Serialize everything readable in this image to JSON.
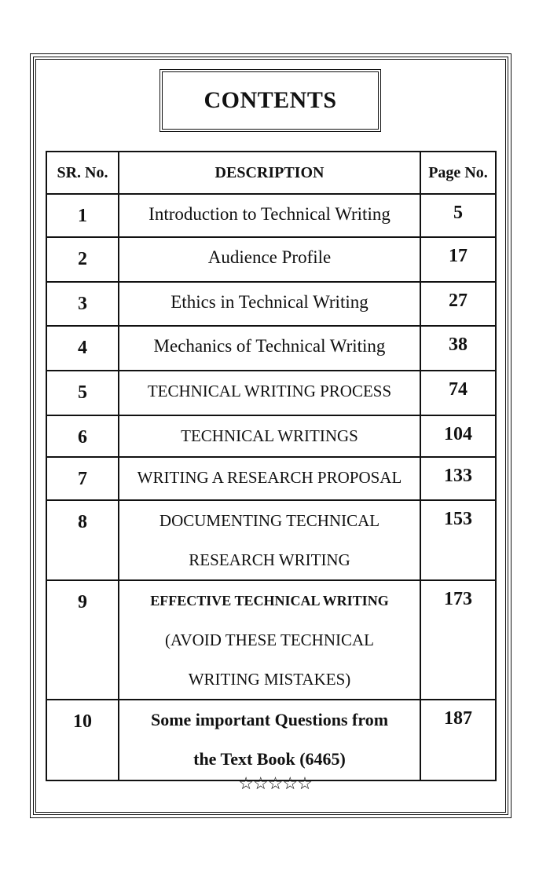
{
  "title": "CONTENTS",
  "headers": {
    "sr": "SR. No.",
    "description": "DESCRIPTION",
    "page": "Page No."
  },
  "rows": [
    {
      "sr": "1",
      "lines": [
        "Introduction to Technical Writing"
      ],
      "page": "5"
    },
    {
      "sr": "2",
      "lines": [
        "Audience Profile"
      ],
      "page": "17"
    },
    {
      "sr": "3",
      "lines": [
        "Ethics in Technical Writing"
      ],
      "page": "27"
    },
    {
      "sr": "4",
      "lines": [
        "Mechanics of Technical Writing"
      ],
      "page": "38"
    },
    {
      "sr": "5",
      "lines": [
        "TECHNICAL WRITING PROCESS"
      ],
      "page": "74"
    },
    {
      "sr": "6",
      "lines": [
        "TECHNICAL WRITINGS"
      ],
      "page": "104"
    },
    {
      "sr": "7",
      "lines": [
        "WRITING A RESEARCH PROPOSAL"
      ],
      "page": "133"
    },
    {
      "sr": "8",
      "lines": [
        "DOCUMENTING TECHNICAL",
        "RESEARCH WRITING"
      ],
      "page": "153"
    },
    {
      "sr": "9",
      "lines": [
        "EFFECTIVE TECHNICAL WRITING",
        "(AVOID THESE TECHNICAL",
        "WRITING MISTAKES)"
      ],
      "page": "173"
    },
    {
      "sr": "10",
      "lines": [
        "Some important Questions from",
        "the Text Book (6465)"
      ],
      "page": "187"
    }
  ],
  "footer_ornament": "☆☆☆☆☆"
}
